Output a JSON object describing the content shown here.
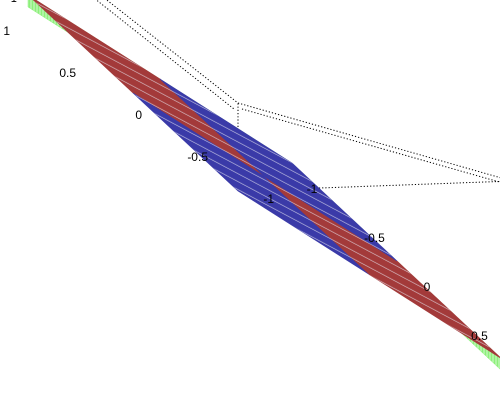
{
  "chart_data": {
    "type": "surface",
    "title": "",
    "xlabel": "",
    "ylabel": "",
    "zlabel": "",
    "x_range": [
      -1,
      1
    ],
    "y_range": [
      -1,
      1
    ],
    "z_range": [
      -1,
      1
    ],
    "grid": false,
    "box_outline": "dotted",
    "x_ticks": [
      "-1",
      "-0.5",
      "0",
      "0.5"
    ],
    "y_ticks": [
      "-1",
      "-0.5",
      "0",
      "0.5",
      "1"
    ],
    "z_ticks": [
      "1",
      "0",
      "-1"
    ],
    "surface_value": 0,
    "quadrants": [
      {
        "x_range": [
          -1,
          0
        ],
        "y_range": [
          0,
          1
        ],
        "color": "#A33A3A",
        "z": 0
      },
      {
        "x_range": [
          0,
          1
        ],
        "y_range": [
          0,
          1
        ],
        "color": "#3A3AA8",
        "z": 0
      },
      {
        "x_range": [
          0,
          1
        ],
        "y_range": [
          -1,
          0
        ],
        "color": "#A33A3A",
        "z": 0
      },
      {
        "x_range": [
          -1,
          0
        ],
        "y_range": [
          -1,
          0
        ],
        "color": "#3A3AA8",
        "z": 0
      }
    ],
    "side_color": "#8CF07A",
    "hatch_color": "#E8E8F2"
  }
}
